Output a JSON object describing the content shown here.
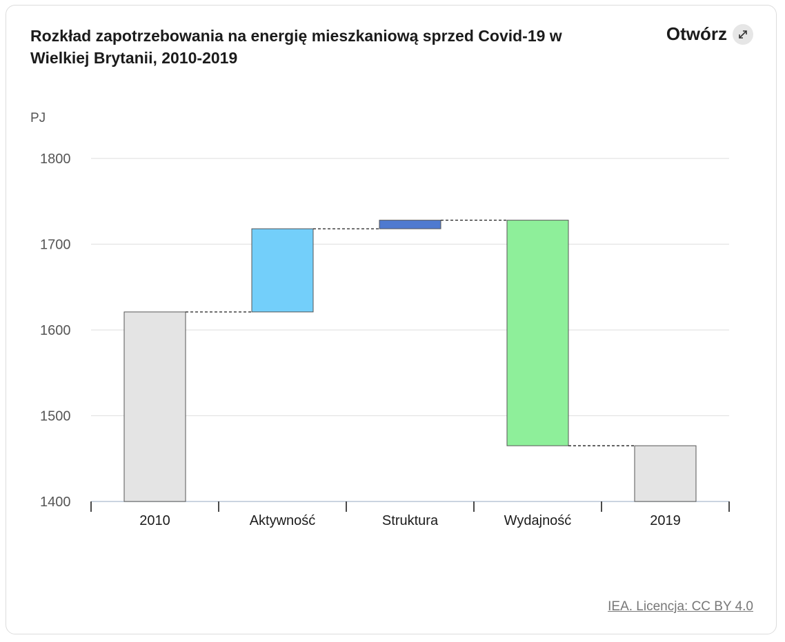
{
  "header": {
    "title": "Rozkład zapotrzebowania na energię mieszkaniową sprzed Covid-19 w Wielkiej Brytanii, 2010-2019",
    "open_label": "Otwórz",
    "open_icon": "expand-arrows-icon"
  },
  "footer": {
    "source": "IEA. Licencja: CC BY 4.0"
  },
  "chart_data": {
    "type": "bar",
    "subtype": "waterfall",
    "title": "Rozkład zapotrzebowania na energię mieszkaniową sprzed Covid-19 w Wielkiej Brytanii, 2010-2019",
    "unit": "PJ",
    "categories": [
      "2010",
      "Aktywność",
      "Struktura",
      "Wydajność",
      "2019"
    ],
    "bars": [
      {
        "category": "2010",
        "kind": "total",
        "start": 1400,
        "end": 1621,
        "color": "#e4e4e4"
      },
      {
        "category": "Aktywność",
        "kind": "change",
        "start": 1621,
        "end": 1718,
        "color": "#73cffa"
      },
      {
        "category": "Struktura",
        "kind": "change",
        "start": 1718,
        "end": 1728,
        "color": "#4f7ad0"
      },
      {
        "category": "Wydajność",
        "kind": "change",
        "start": 1728,
        "end": 1465,
        "color": "#8eef9a"
      },
      {
        "category": "2019",
        "kind": "total",
        "start": 1400,
        "end": 1465,
        "color": "#e4e4e4"
      }
    ],
    "ylim": [
      1400,
      1800
    ],
    "yticks": [
      1400,
      1500,
      1600,
      1700,
      1800
    ],
    "grid": true,
    "connectors": true
  }
}
